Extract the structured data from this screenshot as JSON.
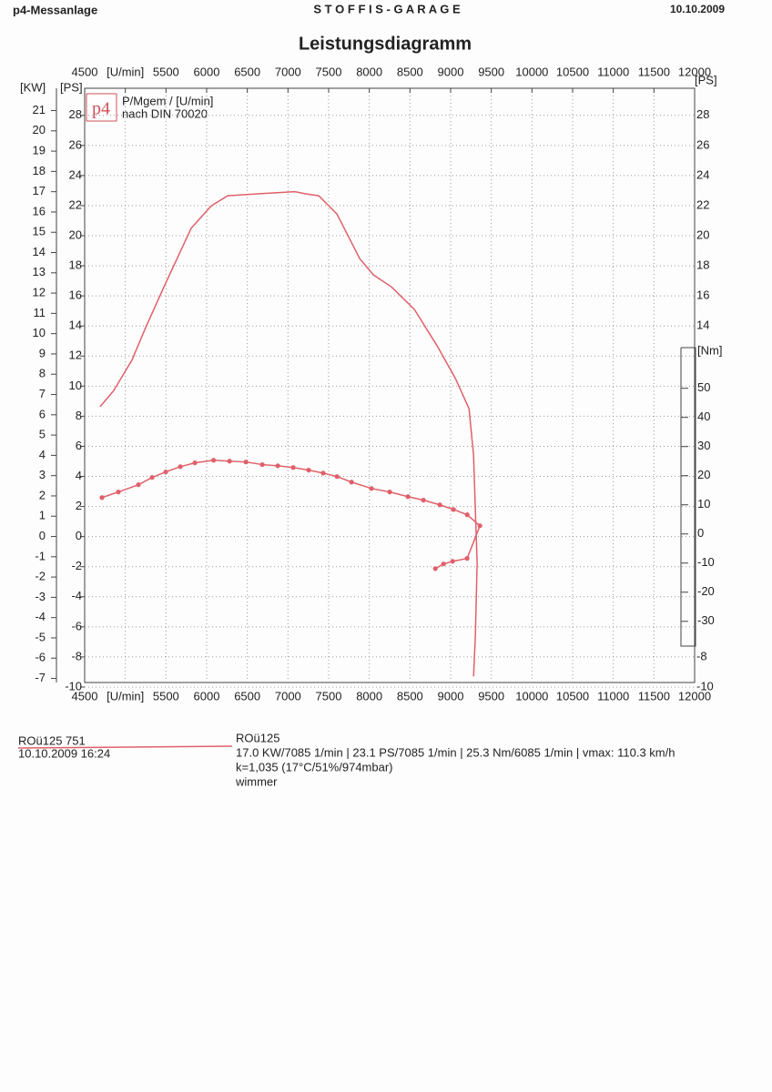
{
  "header": {
    "left": "p4-Messanlage",
    "center": "S T O F F I S - G A R A G E",
    "date": "10.10.2009",
    "title": "Leistungsdiagramm"
  },
  "chart_data": {
    "type": "line",
    "x_unit": "[U/min]",
    "y_label": "[KW]",
    "y2_label": "[PS]",
    "y3_label": "[Nm]",
    "legend_logo": "p4",
    "legend_title": "P/Mgem / [U/min]",
    "legend_subtitle": "nach DIN 70020",
    "xlim": [
      4500,
      12000
    ],
    "xticks": [
      4500,
      {
        "value": 5000,
        "label": "[U/min]"
      },
      5500,
      6000,
      6500,
      7000,
      7500,
      8000,
      8500,
      9000,
      9500,
      10000,
      10500,
      11000,
      11500,
      12000
    ],
    "ylim": [
      -7.2,
      22.1
    ],
    "yticks": [
      -7,
      -6,
      -5,
      -4,
      -3,
      -2,
      -1,
      0,
      1,
      2,
      3,
      4,
      5,
      6,
      7,
      8,
      9,
      10,
      11,
      12,
      13,
      14,
      15,
      16,
      17,
      18,
      19,
      20,
      21
    ],
    "y2lim": [
      -9.7,
      29.8
    ],
    "y2ticks": [
      -10,
      -8,
      -6,
      -4,
      -2,
      0,
      2,
      4,
      6,
      8,
      10,
      12,
      14,
      16,
      18,
      20,
      22,
      24,
      26,
      28
    ],
    "y3lim": [
      -51,
      153
    ],
    "y3ticks": [
      -30,
      -20,
      -10,
      0,
      10,
      20,
      30,
      40,
      50
    ],
    "grid": true,
    "series": [
      {
        "axis": "y",
        "color": "#e0606a",
        "markers": false,
        "x": [
          4690,
          4858,
          5082,
          5250,
          5474,
          5810,
          6057,
          6258,
          6650,
          7085,
          7210,
          7378,
          7602,
          7882,
          8050,
          8274,
          8554,
          8834,
          9058,
          9226,
          9282,
          9304,
          9326,
          9304,
          9282
        ],
        "values": [
          6.4,
          7.2,
          8.7,
          10.3,
          12.3,
          15.2,
          16.3,
          16.8,
          16.9,
          17.0,
          16.9,
          16.8,
          15.9,
          13.7,
          12.9,
          12.3,
          11.2,
          9.4,
          7.8,
          6.3,
          4.0,
          1.3,
          -1.3,
          -4.9,
          -6.9
        ]
      },
      {
        "axis": "y3",
        "color": "#e0606a",
        "markers": true,
        "x": [
          4713,
          4914,
          5161,
          5329,
          5497,
          5676,
          5855,
          6085,
          6281,
          6482,
          6684,
          6874,
          7064,
          7254,
          7433,
          7602,
          7781,
          8027,
          8251,
          8475,
          8666,
          8867,
          9035,
          9203,
          9360,
          9203,
          9024,
          8913,
          8812
        ],
        "values": [
          12.5,
          14.4,
          16.9,
          19.4,
          21.3,
          23.1,
          24.4,
          25.3,
          25.0,
          24.7,
          23.8,
          23.4,
          22.8,
          21.9,
          20.9,
          19.7,
          17.8,
          15.6,
          14.4,
          12.8,
          11.6,
          10.0,
          8.4,
          6.6,
          2.8,
          -8.4,
          -9.4,
          -10.3,
          -11.9
        ]
      }
    ]
  },
  "footer": {
    "run": "ROü125 751",
    "datetime": "10.10.2009  16:24",
    "name": "ROü125",
    "summary": "17.0 KW/7085 1/min  |  23.1 PS/7085 1/min  |  25.3 Nm/6085 1/min | vmax: 110.3 km/h",
    "conditions": "k=1,035 (17°C/51%/974mbar)",
    "operator": "wimmer"
  }
}
